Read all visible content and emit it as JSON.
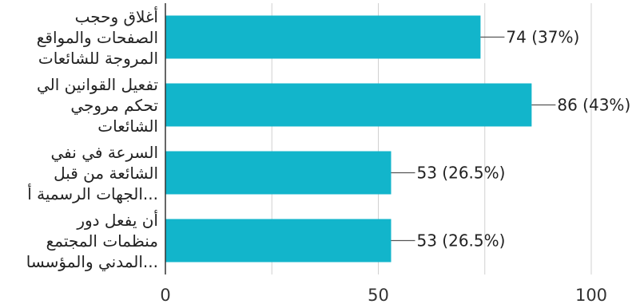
{
  "chart_data": {
    "type": "bar",
    "orientation": "horizontal",
    "categories": [
      [
        "أغلاق وحجب",
        "الصفحات والمواقع",
        "المروجة للشائعات"
      ],
      [
        "تفعيل القوانين الي",
        "تحكم مروجي",
        "الشائعات"
      ],
      [
        "السرعة في نفي",
        "الشائعة من قبل",
        "...الجهات الرسمية أ"
      ],
      [
        "أن يفعل دور",
        "منظمات المجتمع",
        "...المدني والمؤسسا"
      ]
    ],
    "values": [
      74,
      86,
      53,
      53
    ],
    "data_labels": [
      "74 (37%)",
      "86 (43%)",
      "53 (26.5%)",
      "53 (26.5%)"
    ],
    "x_ticks": [
      "0",
      "50",
      "100"
    ],
    "xlim": [
      0,
      100
    ],
    "grid": true,
    "bar_color": "#12B5CB",
    "title": "",
    "xlabel": "",
    "ylabel": ""
  }
}
